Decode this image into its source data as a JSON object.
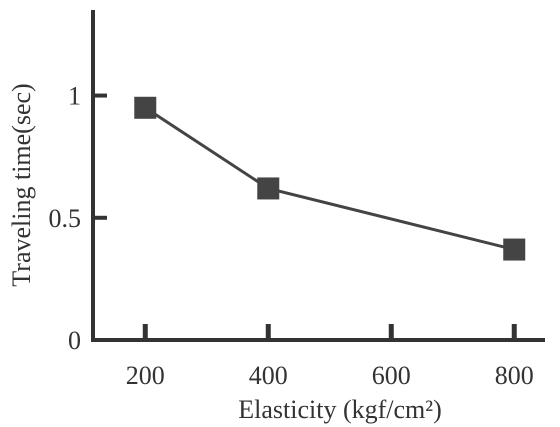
{
  "chart_data": {
    "type": "line",
    "title": "",
    "xlabel": "Elasticity (kgf/cm²)",
    "ylabel": "Traveling time(sec)",
    "x": [
      200,
      400,
      800
    ],
    "series": [
      {
        "values": [
          0.95,
          0.62,
          0.37
        ]
      }
    ],
    "xlim": [
      115,
      850
    ],
    "ylim": [
      0,
      1.35
    ],
    "xticks": [
      200,
      400,
      600,
      800
    ],
    "xtick_labels": [
      "200",
      "400",
      "600",
      "800"
    ],
    "yticks": [
      0,
      0.5,
      1
    ],
    "ytick_labels": [
      "0",
      "0.5",
      "1"
    ],
    "marker": "square",
    "grid": false,
    "legend": "none",
    "colors": {
      "line": "#444444",
      "marker": "#444444",
      "axis": "#333333",
      "text": "#333333"
    }
  }
}
